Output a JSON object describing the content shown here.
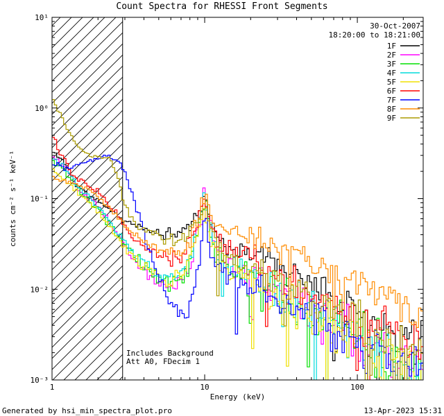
{
  "title": "Count Spectra for RHESSI Front Segments",
  "annotations": {
    "date": "30-Oct-2007",
    "time_range": "18:20:00 to 18:21:00",
    "note1": "Includes Background",
    "note2": "Att A0, FDecim 1"
  },
  "footer": {
    "generated_by": "Generated by hsi_min_spectra_plot.pro",
    "timestamp": "13-Apr-2023 15:31"
  },
  "chart_data": {
    "type": "line",
    "title": "Count Spectra for RHESSI Front Segments",
    "xlabel": "Energy (keV)",
    "ylabel": "counts cm⁻² s⁻¹ keV⁻¹",
    "x_scale": "log",
    "y_scale": "log",
    "x_range": [
      1,
      270
    ],
    "y_range": [
      0.001,
      10
    ],
    "x_tick_values": [
      1,
      10,
      100
    ],
    "x_tick_labels": [
      "1",
      "10",
      "100"
    ],
    "y_tick_values": [
      0.001,
      0.01,
      0.1,
      1,
      10
    ],
    "y_tick_labels": [
      "10⁻³",
      "10⁻²",
      "10⁻¹",
      "10⁰",
      "10¹"
    ],
    "grid": false,
    "legend_position": "top-right",
    "hatch_region_keV": [
      1,
      2.9
    ],
    "series": [
      {
        "name": "1F",
        "color": "#000000",
        "seed": 11,
        "nmult": 0.85,
        "spike": 0.035,
        "points": [
          [
            1,
            0.33
          ],
          [
            1.2,
            0.26
          ],
          [
            1.4,
            0.15
          ],
          [
            1.7,
            0.11
          ],
          [
            2,
            0.095
          ],
          [
            2.4,
            0.075
          ],
          [
            2.9,
            0.058
          ],
          [
            3.5,
            0.05
          ],
          [
            4.5,
            0.044
          ],
          [
            6,
            0.04
          ],
          [
            7,
            0.043
          ],
          [
            8,
            0.052
          ],
          [
            9,
            0.068
          ],
          [
            10,
            0.1
          ],
          [
            10.8,
            0.06
          ],
          [
            12,
            0.035
          ],
          [
            14,
            0.03
          ],
          [
            17,
            0.027
          ],
          [
            22,
            0.024
          ],
          [
            30,
            0.018
          ],
          [
            40,
            0.014
          ],
          [
            55,
            0.011
          ],
          [
            75,
            0.008
          ],
          [
            100,
            0.006
          ],
          [
            140,
            0.0045
          ],
          [
            190,
            0.0033
          ],
          [
            270,
            0.0024
          ]
        ]
      },
      {
        "name": "2F",
        "color": "#ff00ff",
        "seed": 22,
        "nmult": 1.15,
        "spike": 0.07,
        "points": [
          [
            1,
            0.3
          ],
          [
            1.2,
            0.24
          ],
          [
            1.5,
            0.13
          ],
          [
            1.8,
            0.1
          ],
          [
            2.2,
            0.07
          ],
          [
            2.7,
            0.04
          ],
          [
            3.2,
            0.025
          ],
          [
            4,
            0.016
          ],
          [
            5,
            0.011
          ],
          [
            6,
            0.0105
          ],
          [
            7,
            0.013
          ],
          [
            8,
            0.02
          ],
          [
            9,
            0.042
          ],
          [
            10,
            0.105
          ],
          [
            10.8,
            0.05
          ],
          [
            12,
            0.024
          ],
          [
            14,
            0.019
          ],
          [
            17,
            0.016
          ],
          [
            22,
            0.013
          ],
          [
            30,
            0.0095
          ],
          [
            45,
            0.0065
          ],
          [
            65,
            0.0045
          ],
          [
            100,
            0.003
          ],
          [
            150,
            0.0021
          ],
          [
            210,
            0.0016
          ],
          [
            270,
            0.0013
          ]
        ]
      },
      {
        "name": "3F",
        "color": "#00e000",
        "seed": 33,
        "nmult": 1.3,
        "spike": 0.1,
        "points": [
          [
            1,
            0.26
          ],
          [
            1.2,
            0.21
          ],
          [
            1.5,
            0.12
          ],
          [
            1.8,
            0.092
          ],
          [
            2.2,
            0.062
          ],
          [
            2.7,
            0.038
          ],
          [
            3.2,
            0.026
          ],
          [
            4,
            0.018
          ],
          [
            5,
            0.013
          ],
          [
            6,
            0.0115
          ],
          [
            7,
            0.0135
          ],
          [
            8,
            0.021
          ],
          [
            9,
            0.045
          ],
          [
            10,
            0.092
          ],
          [
            10.8,
            0.046
          ],
          [
            12,
            0.023
          ],
          [
            14,
            0.018
          ],
          [
            17,
            0.015
          ],
          [
            22,
            0.012
          ],
          [
            30,
            0.0085
          ],
          [
            45,
            0.006
          ],
          [
            65,
            0.004
          ],
          [
            100,
            0.0028
          ],
          [
            150,
            0.0019
          ],
          [
            210,
            0.0014
          ],
          [
            270,
            0.0012
          ]
        ]
      },
      {
        "name": "4F",
        "color": "#00dcdc",
        "seed": 44,
        "nmult": 1.1,
        "spike": 0.06,
        "points": [
          [
            1,
            0.28
          ],
          [
            1.2,
            0.22
          ],
          [
            1.5,
            0.135
          ],
          [
            1.8,
            0.1
          ],
          [
            2.2,
            0.068
          ],
          [
            2.7,
            0.042
          ],
          [
            3.2,
            0.028
          ],
          [
            4,
            0.02
          ],
          [
            5,
            0.0145
          ],
          [
            6,
            0.013
          ],
          [
            7,
            0.015
          ],
          [
            8,
            0.023
          ],
          [
            9,
            0.048
          ],
          [
            10,
            0.098
          ],
          [
            10.8,
            0.05
          ],
          [
            12,
            0.025
          ],
          [
            14,
            0.019
          ],
          [
            17,
            0.016
          ],
          [
            22,
            0.0125
          ],
          [
            30,
            0.009
          ],
          [
            45,
            0.0062
          ],
          [
            65,
            0.0043
          ],
          [
            100,
            0.003
          ],
          [
            150,
            0.002
          ],
          [
            210,
            0.0015
          ],
          [
            270,
            0.0013
          ]
        ]
      },
      {
        "name": "5F",
        "color": "#f0e000",
        "seed": 55,
        "nmult": 1.1,
        "spike": 0.06,
        "points": [
          [
            1,
            0.21
          ],
          [
            1.2,
            0.17
          ],
          [
            1.5,
            0.115
          ],
          [
            1.8,
            0.088
          ],
          [
            2.2,
            0.06
          ],
          [
            2.7,
            0.037
          ],
          [
            3.2,
            0.025
          ],
          [
            4,
            0.018
          ],
          [
            5,
            0.0135
          ],
          [
            6,
            0.012
          ],
          [
            7,
            0.014
          ],
          [
            8,
            0.021
          ],
          [
            9,
            0.043
          ],
          [
            10,
            0.088
          ],
          [
            10.8,
            0.045
          ],
          [
            12,
            0.022
          ],
          [
            14,
            0.017
          ],
          [
            17,
            0.0145
          ],
          [
            22,
            0.0115
          ],
          [
            30,
            0.0082
          ],
          [
            45,
            0.0057
          ],
          [
            65,
            0.004
          ],
          [
            100,
            0.0027
          ],
          [
            150,
            0.0018
          ],
          [
            210,
            0.0014
          ],
          [
            270,
            0.0012
          ]
        ]
      },
      {
        "name": "6F",
        "color": "#ff0000",
        "seed": 66,
        "nmult": 0.95,
        "spike": 0.04,
        "points": [
          [
            1,
            0.55
          ],
          [
            1.15,
            0.3
          ],
          [
            1.35,
            0.19
          ],
          [
            1.6,
            0.15
          ],
          [
            2,
            0.12
          ],
          [
            2.4,
            0.085
          ],
          [
            2.9,
            0.056
          ],
          [
            3.5,
            0.036
          ],
          [
            4.5,
            0.026
          ],
          [
            6,
            0.021
          ],
          [
            7,
            0.023
          ],
          [
            8,
            0.033
          ],
          [
            9,
            0.06
          ],
          [
            10,
            0.115
          ],
          [
            10.8,
            0.062
          ],
          [
            12,
            0.036
          ],
          [
            14,
            0.029
          ],
          [
            17,
            0.025
          ],
          [
            22,
            0.02
          ],
          [
            30,
            0.0145
          ],
          [
            40,
            0.0115
          ],
          [
            55,
            0.009
          ],
          [
            75,
            0.0065
          ],
          [
            100,
            0.005
          ],
          [
            140,
            0.0038
          ],
          [
            190,
            0.0028
          ],
          [
            270,
            0.0021
          ]
        ]
      },
      {
        "name": "7F",
        "color": "#0000ff",
        "seed": 77,
        "nmult": 1.0,
        "spike": 0.05,
        "points": [
          [
            1,
            0.25
          ],
          [
            1.2,
            0.22
          ],
          [
            1.5,
            0.24
          ],
          [
            1.9,
            0.27
          ],
          [
            2.3,
            0.3
          ],
          [
            2.7,
            0.27
          ],
          [
            3.1,
            0.17
          ],
          [
            3.5,
            0.09
          ],
          [
            4,
            0.042
          ],
          [
            4.5,
            0.022
          ],
          [
            5,
            0.013
          ],
          [
            5.7,
            0.0085
          ],
          [
            6.5,
            0.0055
          ],
          [
            7.5,
            0.005
          ],
          [
            8.5,
            0.009
          ],
          [
            9.3,
            0.025
          ],
          [
            10,
            0.072
          ],
          [
            10.8,
            0.032
          ],
          [
            12,
            0.016
          ],
          [
            14,
            0.013
          ],
          [
            17,
            0.0115
          ],
          [
            22,
            0.0098
          ],
          [
            30,
            0.0075
          ],
          [
            45,
            0.0052
          ],
          [
            65,
            0.0038
          ],
          [
            100,
            0.0027
          ],
          [
            150,
            0.0019
          ],
          [
            210,
            0.0014
          ],
          [
            270,
            0.0012
          ]
        ]
      },
      {
        "name": "8F",
        "color": "#ff8c00",
        "seed": 88,
        "nmult": 0.85,
        "spike": 0.03,
        "points": [
          [
            1,
            0.17
          ],
          [
            1.3,
            0.155
          ],
          [
            1.7,
            0.13
          ],
          [
            2,
            0.105
          ],
          [
            2.4,
            0.078
          ],
          [
            2.9,
            0.055
          ],
          [
            3.5,
            0.04
          ],
          [
            4.5,
            0.029
          ],
          [
            6,
            0.024
          ],
          [
            7,
            0.026
          ],
          [
            8,
            0.034
          ],
          [
            9,
            0.058
          ],
          [
            10,
            0.105
          ],
          [
            10.8,
            0.068
          ],
          [
            12,
            0.052
          ],
          [
            14,
            0.047
          ],
          [
            17,
            0.043
          ],
          [
            22,
            0.038
          ],
          [
            30,
            0.029
          ],
          [
            40,
            0.024
          ],
          [
            55,
            0.019
          ],
          [
            75,
            0.0145
          ],
          [
            100,
            0.0115
          ],
          [
            140,
            0.0085
          ],
          [
            190,
            0.0062
          ],
          [
            270,
            0.0042
          ]
        ]
      },
      {
        "name": "9F",
        "color": "#ac9c00",
        "seed": 99,
        "nmult": 0.95,
        "spike": 0.05,
        "points": [
          [
            1,
            1.3
          ],
          [
            1.12,
            0.92
          ],
          [
            1.25,
            0.6
          ],
          [
            1.4,
            0.42
          ],
          [
            1.6,
            0.33
          ],
          [
            1.85,
            0.29
          ],
          [
            2.1,
            0.295
          ],
          [
            2.4,
            0.28
          ],
          [
            2.7,
            0.17
          ],
          [
            3,
            0.085
          ],
          [
            3.5,
            0.052
          ],
          [
            4.5,
            0.04
          ],
          [
            6,
            0.034
          ],
          [
            7,
            0.036
          ],
          [
            8,
            0.044
          ],
          [
            9,
            0.06
          ],
          [
            10,
            0.082
          ],
          [
            10.8,
            0.048
          ],
          [
            12,
            0.031
          ],
          [
            14,
            0.024
          ],
          [
            17,
            0.02
          ],
          [
            22,
            0.016
          ],
          [
            30,
            0.0115
          ],
          [
            40,
            0.009
          ],
          [
            55,
            0.0072
          ],
          [
            75,
            0.0055
          ],
          [
            100,
            0.0043
          ],
          [
            140,
            0.0032
          ],
          [
            190,
            0.0024
          ],
          [
            270,
            0.0018
          ]
        ]
      }
    ]
  }
}
